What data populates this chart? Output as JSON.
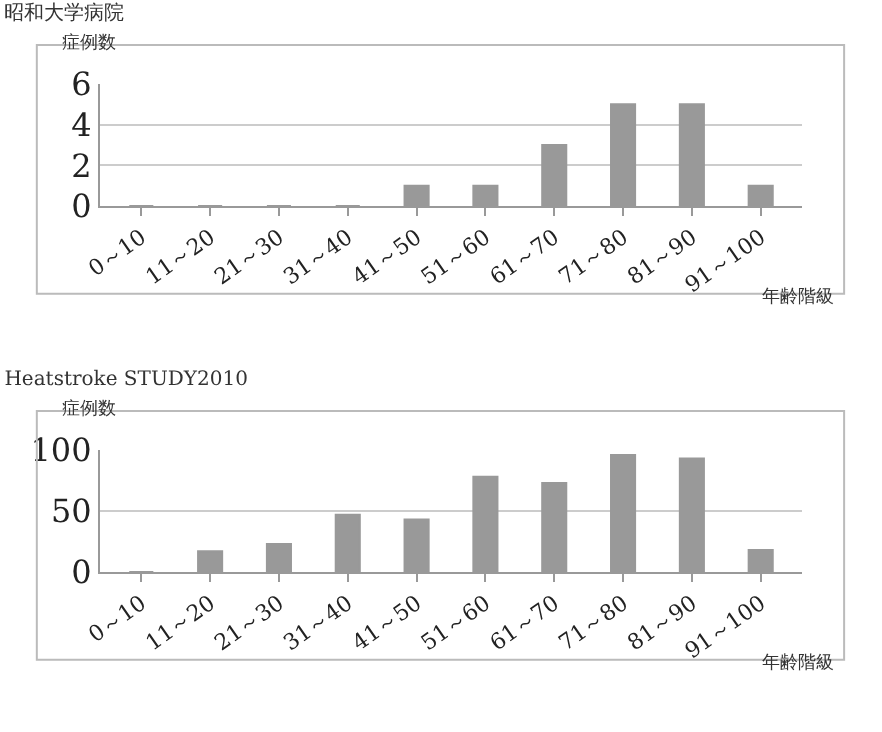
{
  "chart_data": [
    {
      "type": "bar",
      "title": "昭和大学病院",
      "ylabel": "症例数",
      "xlabel": "年齢階級",
      "categories": [
        "0～10",
        "11～20",
        "21～30",
        "31～40",
        "41～50",
        "51～60",
        "61～70",
        "71～80",
        "81～90",
        "91～100"
      ],
      "values": [
        0,
        0,
        0,
        0,
        1,
        1,
        3,
        5,
        5,
        1
      ],
      "color": "#999999",
      "ylim": [
        0,
        6
      ],
      "yticks": [
        0,
        2,
        4,
        6
      ],
      "grid": "y"
    },
    {
      "type": "bar",
      "title": "Heatstroke STUDY2010",
      "ylabel": "症例数",
      "xlabel": "年齢階級",
      "categories": [
        "0～10",
        "11～20",
        "21～30",
        "31～40",
        "41～50",
        "51～60",
        "61～70",
        "71～80",
        "81～90",
        "91～100"
      ],
      "values": [
        0,
        17,
        23,
        47,
        43,
        78,
        73,
        96,
        93,
        18
      ],
      "color": "#999999",
      "ylim": [
        0,
        100
      ],
      "yticks": [
        0,
        50,
        100
      ],
      "grid": "y"
    }
  ]
}
